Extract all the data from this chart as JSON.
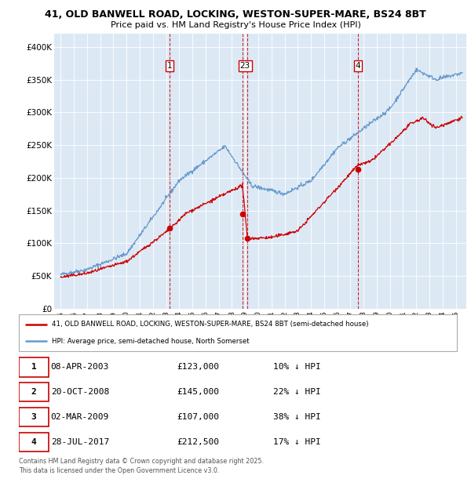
{
  "title_line1": "41, OLD BANWELL ROAD, LOCKING, WESTON-SUPER-MARE, BS24 8BT",
  "title_line2": "Price paid vs. HM Land Registry's House Price Index (HPI)",
  "legend_label_red": "41, OLD BANWELL ROAD, LOCKING, WESTON-SUPER-MARE, BS24 8BT (semi-detached house)",
  "legend_label_blue": "HPI: Average price, semi-detached house, North Somerset",
  "footer_line1": "Contains HM Land Registry data © Crown copyright and database right 2025.",
  "footer_line2": "This data is licensed under the Open Government Licence v3.0.",
  "transactions": [
    {
      "num": 1,
      "date": "08-APR-2003",
      "price": 123000,
      "hpi_pct": "10% ↓ HPI"
    },
    {
      "num": 2,
      "date": "20-OCT-2008",
      "price": 145000,
      "hpi_pct": "22% ↓ HPI"
    },
    {
      "num": 3,
      "date": "02-MAR-2009",
      "price": 107000,
      "hpi_pct": "38% ↓ HPI"
    },
    {
      "num": 4,
      "date": "28-JUL-2017",
      "price": 212500,
      "hpi_pct": "17% ↓ HPI"
    }
  ],
  "transaction_dates_decimal": [
    2003.27,
    2008.8,
    2009.17,
    2017.57
  ],
  "transaction_prices": [
    123000,
    145000,
    107000,
    212500
  ],
  "ylim": [
    0,
    420000
  ],
  "yticks": [
    0,
    50000,
    100000,
    150000,
    200000,
    250000,
    300000,
    350000,
    400000
  ],
  "ytick_labels": [
    "£0",
    "£50K",
    "£100K",
    "£150K",
    "£200K",
    "£250K",
    "£300K",
    "£350K",
    "£400K"
  ],
  "xlim_start": 1994.5,
  "xlim_end": 2025.8,
  "background_color": "#dce9f5",
  "red_color": "#cc0000",
  "blue_color": "#6699cc",
  "vline_color": "#cc0000"
}
